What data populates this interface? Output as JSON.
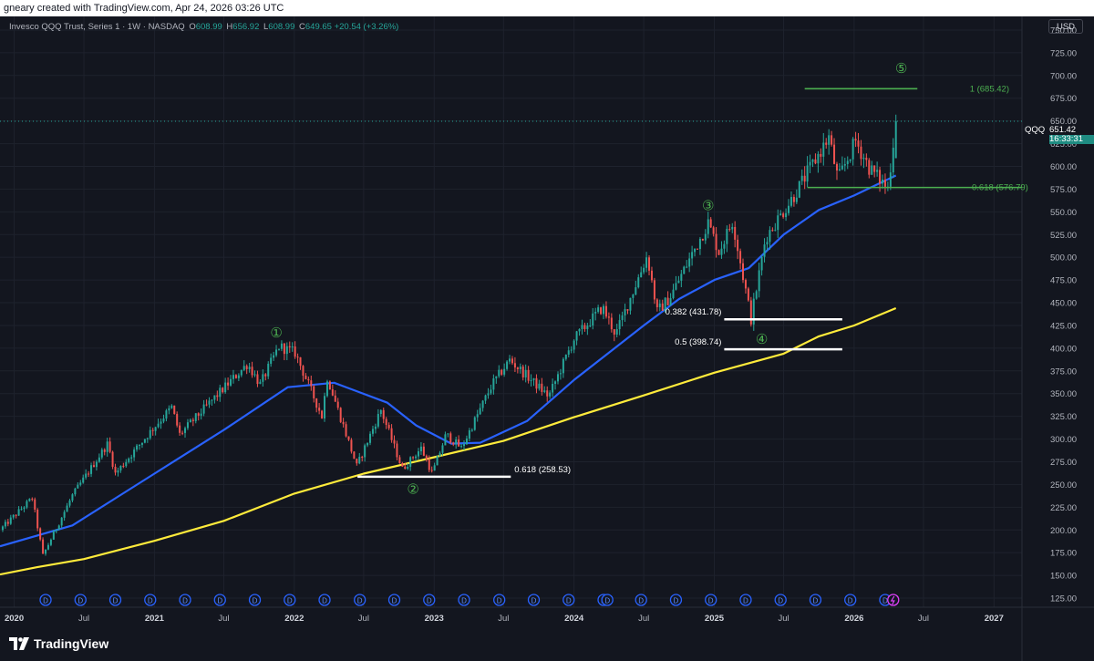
{
  "header": {
    "caption": "gneary created with TradingView.com, Apr 24, 2026 03:26 UTC"
  },
  "legend": {
    "title": "Invesco QQQ Trust, Series 1 · 1W · NASDAQ",
    "o_label": "O",
    "o_value": "608.99",
    "h_label": "H",
    "h_value": "656.92",
    "l_label": "L",
    "l_value": "608.99",
    "c_label": "C",
    "c_value": "649.65",
    "change": "+20.54 (+3.26%)"
  },
  "currency": "USD",
  "price_tag": {
    "symbol": "QQQ",
    "value": "651.42",
    "countdown": "16:33:31"
  },
  "brand": {
    "name": "TradingView"
  },
  "colors": {
    "background": "#13161f",
    "grid": "#1e222d",
    "up": "#26a69a",
    "down": "#ef5350",
    "ma_fast": "#2962ff",
    "ma_slow": "#ffeb3b",
    "fib_green": "#4caf50",
    "fib_white": "#ffffff",
    "dividend": "#2962ff",
    "split": "#e040fb"
  },
  "chart_data": {
    "type": "candlestick",
    "instrument": "QQQ",
    "timeframe": "1W",
    "xlim": [
      "2019-11-25",
      "2027-03-15"
    ],
    "ylim": [
      115,
      765
    ],
    "yticks": [
      125,
      150,
      175,
      200,
      225,
      250,
      275,
      300,
      325,
      350,
      375,
      400,
      425,
      450,
      475,
      500,
      525,
      550,
      575,
      600,
      625,
      650,
      675,
      700,
      725,
      750
    ],
    "ytick_labels": [
      "125.00",
      "150.00",
      "175.00",
      "200.00",
      "225.00",
      "250.00",
      "275.00",
      "300.00",
      "325.00",
      "350.00",
      "375.00",
      "400.00",
      "425.00",
      "450.00",
      "475.00",
      "500.00",
      "525.00",
      "550.00",
      "575.00",
      "600.00",
      "625.00",
      "650.00",
      "675.00",
      "700.00",
      "725.00",
      "750.00"
    ],
    "xticks": [
      {
        "date": "2020-01-01",
        "label": "2020",
        "major": true
      },
      {
        "date": "2020-07-01",
        "label": "Jul",
        "major": false
      },
      {
        "date": "2021-01-01",
        "label": "2021",
        "major": true
      },
      {
        "date": "2021-07-01",
        "label": "Jul",
        "major": false
      },
      {
        "date": "2022-01-01",
        "label": "2022",
        "major": true
      },
      {
        "date": "2022-07-01",
        "label": "Jul",
        "major": false
      },
      {
        "date": "2023-01-01",
        "label": "2023",
        "major": true
      },
      {
        "date": "2023-07-01",
        "label": "Jul",
        "major": false
      },
      {
        "date": "2024-01-01",
        "label": "2024",
        "major": true
      },
      {
        "date": "2024-07-01",
        "label": "Jul",
        "major": false
      },
      {
        "date": "2025-01-01",
        "label": "2025",
        "major": true
      },
      {
        "date": "2025-07-01",
        "label": "Jul",
        "major": false
      },
      {
        "date": "2026-01-01",
        "label": "2026",
        "major": true
      },
      {
        "date": "2026-07-01",
        "label": "Jul",
        "major": false
      },
      {
        "date": "2027-01-01",
        "label": "2027",
        "major": true
      }
    ],
    "price_path": [
      [
        "2019-11-25",
        200
      ],
      [
        "2020-02-17",
        235
      ],
      [
        "2020-03-16",
        172
      ],
      [
        "2020-06-01",
        238
      ],
      [
        "2020-09-01",
        295
      ],
      [
        "2020-09-21",
        262
      ],
      [
        "2020-12-31",
        313
      ],
      [
        "2021-02-15",
        335
      ],
      [
        "2021-03-08",
        305
      ],
      [
        "2021-06-01",
        343
      ],
      [
        "2021-09-01",
        383
      ],
      [
        "2021-10-04",
        360
      ],
      [
        "2021-11-22",
        402
      ],
      [
        "2022-01-03",
        395
      ],
      [
        "2022-03-14",
        325
      ],
      [
        "2022-03-28",
        368
      ],
      [
        "2022-06-13",
        270
      ],
      [
        "2022-08-15",
        332
      ],
      [
        "2022-10-10",
        267
      ],
      [
        "2022-11-28",
        290
      ],
      [
        "2022-12-27",
        262
      ],
      [
        "2023-02-01",
        305
      ],
      [
        "2023-03-13",
        290
      ],
      [
        "2023-06-01",
        360
      ],
      [
        "2023-07-17",
        387
      ],
      [
        "2023-10-27",
        347
      ],
      [
        "2024-01-01",
        410
      ],
      [
        "2024-03-15",
        445
      ],
      [
        "2024-04-19",
        415
      ],
      [
        "2024-07-10",
        502
      ],
      [
        "2024-08-05",
        440
      ],
      [
        "2024-09-06",
        455
      ],
      [
        "2024-12-16",
        538
      ],
      [
        "2025-01-13",
        506
      ],
      [
        "2025-02-18",
        540
      ],
      [
        "2025-04-07",
        432
      ],
      [
        "2025-05-15",
        522
      ],
      [
        "2025-07-28",
        568
      ],
      [
        "2025-10-27",
        632
      ],
      [
        "2025-11-20",
        585
      ],
      [
        "2026-01-05",
        628
      ],
      [
        "2026-02-10",
        598
      ],
      [
        "2026-03-30",
        576
      ],
      [
        "2026-04-20",
        651
      ]
    ],
    "last_candle": {
      "open": 608.99,
      "high": 656.92,
      "low": 608.99,
      "close": 649.65
    },
    "ma_fast": {
      "color": "#2962ff",
      "points": [
        [
          "2019-11-25",
          182
        ],
        [
          "2020-06-01",
          205
        ],
        [
          "2021-01-01",
          262
        ],
        [
          "2021-07-01",
          310
        ],
        [
          "2021-12-15",
          357
        ],
        [
          "2022-04-15",
          362
        ],
        [
          "2022-09-01",
          340
        ],
        [
          "2022-11-15",
          315
        ],
        [
          "2023-02-15",
          295
        ],
        [
          "2023-05-01",
          296
        ],
        [
          "2023-09-01",
          320
        ],
        [
          "2024-01-01",
          365
        ],
        [
          "2024-07-01",
          425
        ],
        [
          "2024-10-01",
          454
        ],
        [
          "2025-01-01",
          475
        ],
        [
          "2025-04-01",
          488
        ],
        [
          "2025-07-01",
          525
        ],
        [
          "2025-10-01",
          552
        ],
        [
          "2026-01-01",
          568
        ],
        [
          "2026-04-20",
          590
        ]
      ]
    },
    "ma_slow": {
      "color": "#ffeb3b",
      "points": [
        [
          "2019-11-25",
          151
        ],
        [
          "2020-03-01",
          159
        ],
        [
          "2020-07-01",
          168
        ],
        [
          "2021-01-01",
          188
        ],
        [
          "2021-07-01",
          210
        ],
        [
          "2022-01-01",
          240
        ],
        [
          "2022-07-01",
          262
        ],
        [
          "2023-01-01",
          280
        ],
        [
          "2023-07-01",
          298
        ],
        [
          "2024-01-01",
          324
        ],
        [
          "2024-07-01",
          348
        ],
        [
          "2025-01-01",
          373
        ],
        [
          "2025-07-01",
          394
        ],
        [
          "2025-10-01",
          413
        ],
        [
          "2026-01-01",
          425
        ],
        [
          "2026-04-20",
          444
        ]
      ]
    },
    "fib_levels": [
      {
        "label": "1 (685.42)",
        "value": 685.42,
        "start": "2025-08-25",
        "end": "2026-06-15",
        "color": "#4caf50"
      },
      {
        "label": "0.618 (576.79)",
        "value": 576.79,
        "start": "2025-09-01",
        "end": "2027-03-15",
        "color": "#4caf50"
      },
      {
        "label": "0.382 (431.78)",
        "value": 431.78,
        "start": "2025-01-27",
        "end": "2025-12-01",
        "color": "#ffffff"
      },
      {
        "label": "0.5 (398.74)",
        "value": 398.74,
        "start": "2025-01-27",
        "end": "2025-12-01",
        "color": "#ffffff"
      },
      {
        "label": "0.618 (258.53)",
        "value": 258.53,
        "start": "2022-06-15",
        "end": "2023-07-20",
        "color": "#ffffff"
      }
    ],
    "wave_labels": [
      {
        "label": "①",
        "date": "2021-11-15",
        "value": 417
      },
      {
        "label": "②",
        "date": "2022-11-07",
        "value": 245
      },
      {
        "label": "③",
        "date": "2024-12-16",
        "value": 557
      },
      {
        "label": "④",
        "date": "2025-05-05",
        "value": 410
      },
      {
        "label": "⑤",
        "date": "2026-05-04",
        "value": 708
      }
    ],
    "dividend_markers": {
      "label": "D",
      "dates": [
        "2020-03-23",
        "2020-06-22",
        "2020-09-21",
        "2020-12-21",
        "2021-03-22",
        "2021-06-21",
        "2021-09-20",
        "2021-12-20",
        "2022-03-21",
        "2022-06-21",
        "2022-09-19",
        "2022-12-19",
        "2023-03-20",
        "2023-06-20",
        "2023-09-18",
        "2023-12-18",
        "2024-03-18",
        "2024-06-24",
        "2024-09-23",
        "2024-12-23",
        "2025-03-24",
        "2025-06-23",
        "2025-09-22",
        "2025-12-22"
      ],
      "extra_dates": [
        "2024-03-28",
        "2026-03-23"
      ],
      "split_date": "2026-04-13"
    }
  }
}
